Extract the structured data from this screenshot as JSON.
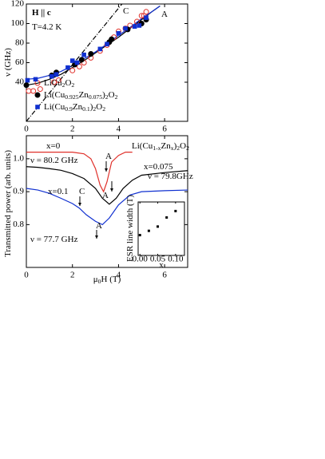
{
  "chart_data": [
    {
      "type": "scatter",
      "xlabel": "μ0H (T)",
      "ylabel": "ν (GHz)",
      "xlim": [
        0,
        7
      ],
      "xticks": [
        0,
        2,
        4,
        6
      ],
      "ylim": [
        0,
        120
      ],
      "yticks": [
        40,
        60,
        80,
        100,
        120
      ],
      "annotations": [
        "H || c",
        "T=4.2 K",
        "C",
        "A"
      ],
      "legend": "lower left",
      "series": [
        {
          "name": "LiCu2O2",
          "color": "#e0302a",
          "marker": "circle-open",
          "x": [
            0.1,
            0.3,
            0.6,
            1.2,
            1.4,
            2.0,
            2.3,
            2.5,
            2.8,
            3.2,
            3.5,
            3.8,
            4.0,
            4.3,
            4.5,
            4.8,
            5.0,
            5.1,
            5.2
          ],
          "values": [
            31,
            31,
            33,
            40,
            42,
            52,
            56,
            60,
            65,
            72,
            78,
            86,
            92,
            95,
            98,
            102,
            108,
            108,
            112
          ]
        },
        {
          "name": "Li(Cu0.925Zn0.075)2O2",
          "color": "#000000",
          "marker": "circle",
          "x": [
            0,
            1.1,
            1.3,
            2.1,
            2.4,
            2.8,
            3.6,
            3.7,
            4.4,
            5.0,
            5.2
          ],
          "values": [
            37,
            47,
            50,
            58,
            63,
            69,
            81,
            84,
            94,
            100,
            104
          ]
        },
        {
          "name": "Li(Cu0.9Zn0.1)2O2",
          "color": "#1030d0",
          "marker": "square",
          "x": [
            0.05,
            0.4,
            1.1,
            1.3,
            1.8,
            2.0,
            2.2,
            2.5,
            3.2,
            3.5,
            4.0,
            4.3,
            4.7,
            4.9,
            5.2
          ],
          "values": [
            42,
            43,
            46,
            48,
            55,
            62,
            60,
            68,
            74,
            79,
            90,
            95,
            97,
            98,
            106
          ]
        }
      ],
      "lines": [
        {
          "color": "#000000",
          "dash": "none",
          "x": [
            0,
            0.5,
            1,
            1.5,
            2,
            2.5,
            3,
            3.5,
            4,
            4.5,
            5,
            5.5,
            5.8
          ],
          "values": [
            37,
            39,
            43,
            48,
            55,
            62,
            70,
            78,
            86,
            95,
            104,
            113,
            118
          ]
        },
        {
          "color": "#1030d0",
          "dash": "none",
          "x": [
            0,
            0.5,
            1,
            1.5,
            2,
            2.5,
            3,
            3.5,
            4,
            4.5,
            5,
            5.5,
            5.8
          ],
          "values": [
            43,
            44,
            47,
            51,
            57,
            64,
            71,
            79,
            88,
            96,
            105,
            113,
            118
          ]
        },
        {
          "color": "#000000",
          "dash": "6 2 1 2",
          "x": [
            0,
            4.15
          ],
          "values": [
            0,
            120
          ]
        }
      ]
    },
    {
      "type": "line",
      "xlabel": "μ0H (T)",
      "ylabel": "Transmitted power (arb. units)",
      "xlim": [
        0,
        7
      ],
      "xticks": [
        0,
        2,
        4,
        6
      ],
      "ylim": [
        0.67,
        1.07
      ],
      "yticks": [
        {
          "value": 0.8,
          "label": "0.8"
        },
        {
          "value": 0.9,
          "label": "0.9"
        },
        {
          "value": 1.0,
          "label": "1.0"
        }
      ],
      "annotations": [
        "x=0",
        "A",
        "Li(Cu1-xZnx)2O2",
        "ν = 80.2 GHz",
        "x=0.075",
        "ν = 79.8GHz",
        "A",
        "x=0.1",
        "C",
        "A",
        "ν = 77.7 GHz"
      ],
      "series": [
        {
          "color": "#e0302a",
          "x": [
            0,
            0.5,
            1,
            1.5,
            2,
            2.5,
            2.8,
            3.0,
            3.2,
            3.35,
            3.5,
            3.7,
            4,
            4.3,
            4.6
          ],
          "values": [
            1.02,
            1.02,
            1.02,
            1.02,
            1.02,
            1.015,
            1.0,
            0.97,
            0.92,
            0.9,
            0.93,
            0.99,
            1.01,
            1.02,
            1.02
          ]
        },
        {
          "color": "#000000",
          "x": [
            0,
            0.5,
            1,
            1.5,
            2,
            2.5,
            3,
            3.3,
            3.6,
            3.9,
            4.2,
            4.6,
            5,
            6,
            7
          ],
          "values": [
            0.976,
            0.974,
            0.97,
            0.965,
            0.955,
            0.94,
            0.91,
            0.88,
            0.862,
            0.88,
            0.91,
            0.935,
            0.95,
            0.958,
            0.964
          ]
        },
        {
          "color": "#1030d0",
          "x": [
            0,
            0.5,
            1,
            1.5,
            2,
            2.3,
            2.6,
            3.0,
            3.3,
            3.6,
            4,
            4.5,
            5,
            6,
            7
          ],
          "values": [
            0.91,
            0.905,
            0.895,
            0.88,
            0.864,
            0.85,
            0.83,
            0.81,
            0.8,
            0.82,
            0.86,
            0.89,
            0.9,
            0.903,
            0.905
          ]
        }
      ]
    },
    {
      "type": "scatter",
      "xlabel": "x",
      "ylabel": "ESR line width (T)",
      "xlim": [
        -0.005,
        0.125
      ],
      "xticks": [
        {
          "value": 0,
          "label": "0.00"
        },
        {
          "value": 0.05,
          "label": "0.05"
        },
        {
          "value": 0.1,
          "label": "0.10"
        }
      ],
      "ylim": [
        0,
        1
      ],
      "series": [
        {
          "color": "#000000",
          "marker": "square-small",
          "x": [
            0,
            0.025,
            0.05,
            0.075,
            0.1
          ],
          "values": [
            0.38,
            0.46,
            0.54,
            0.71,
            0.83
          ]
        }
      ]
    }
  ]
}
